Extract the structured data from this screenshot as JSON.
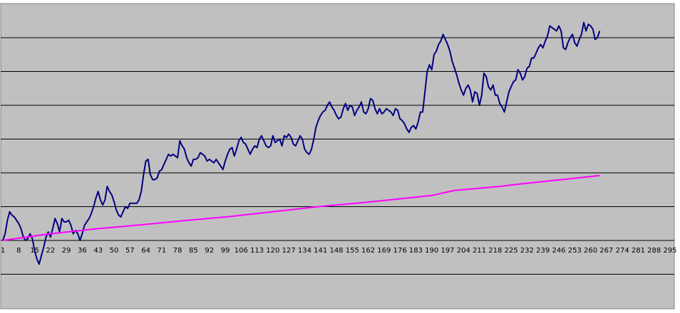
{
  "chart_data": {
    "type": "line",
    "title": "",
    "xlabel": "",
    "ylabel": "",
    "grid": true,
    "plot_background": "#c0c0c0",
    "x_tick_labels": [
      "1",
      "8",
      "15",
      "22",
      "29",
      "36",
      "43",
      "50",
      "57",
      "64",
      "71",
      "78",
      "85",
      "92",
      "99",
      "106",
      "113",
      "120",
      "127",
      "134",
      "141",
      "148",
      "155",
      "162",
      "169",
      "176",
      "183",
      "190",
      "197",
      "204",
      "211",
      "218",
      "225",
      "232",
      "239",
      "246",
      "253",
      "260",
      "267",
      "274",
      "281",
      "288",
      "295"
    ],
    "x_tick_values": [
      1,
      8,
      15,
      22,
      29,
      36,
      43,
      50,
      57,
      64,
      71,
      78,
      85,
      92,
      99,
      106,
      113,
      120,
      127,
      134,
      141,
      148,
      155,
      162,
      169,
      176,
      183,
      190,
      197,
      204,
      211,
      218,
      225,
      232,
      239,
      246,
      253,
      260,
      267,
      274,
      281,
      288,
      295
    ],
    "xlim": [
      1,
      295
    ],
    "ylim": [
      -1,
      6
    ],
    "y_gridlines": [
      -1,
      0,
      1,
      2,
      3,
      4,
      5,
      6
    ],
    "series": [
      {
        "color": "#000080",
        "points": [
          [
            1,
            0.0
          ],
          [
            2,
            0.2
          ],
          [
            3,
            0.6
          ],
          [
            4,
            0.85
          ],
          [
            5,
            0.75
          ],
          [
            6,
            0.7
          ],
          [
            7,
            0.6
          ],
          [
            8,
            0.5
          ],
          [
            9,
            0.35
          ],
          [
            10,
            0.1
          ],
          [
            11,
            0.0
          ],
          [
            12,
            0.05
          ],
          [
            13,
            0.2
          ],
          [
            14,
            0.05
          ],
          [
            15,
            -0.3
          ],
          [
            16,
            -0.55
          ],
          [
            17,
            -0.7
          ],
          [
            18,
            -0.45
          ],
          [
            19,
            -0.2
          ],
          [
            20,
            0.1
          ],
          [
            21,
            0.25
          ],
          [
            22,
            0.1
          ],
          [
            23,
            0.35
          ],
          [
            24,
            0.65
          ],
          [
            25,
            0.5
          ],
          [
            26,
            0.25
          ],
          [
            27,
            0.65
          ],
          [
            28,
            0.55
          ],
          [
            29,
            0.55
          ],
          [
            30,
            0.6
          ],
          [
            31,
            0.45
          ],
          [
            32,
            0.2
          ],
          [
            33,
            0.3
          ],
          [
            34,
            0.2
          ],
          [
            35,
            0.0
          ],
          [
            36,
            0.2
          ],
          [
            37,
            0.45
          ],
          [
            38,
            0.55
          ],
          [
            39,
            0.65
          ],
          [
            40,
            0.8
          ],
          [
            41,
            1.0
          ],
          [
            42,
            1.25
          ],
          [
            43,
            1.45
          ],
          [
            44,
            1.2
          ],
          [
            45,
            1.05
          ],
          [
            46,
            1.2
          ],
          [
            47,
            1.6
          ],
          [
            48,
            1.45
          ],
          [
            49,
            1.35
          ],
          [
            50,
            1.15
          ],
          [
            51,
            0.9
          ],
          [
            52,
            0.75
          ],
          [
            53,
            0.7
          ],
          [
            54,
            0.85
          ],
          [
            55,
            1.0
          ],
          [
            56,
            0.95
          ],
          [
            57,
            1.1
          ],
          [
            58,
            1.1
          ],
          [
            59,
            1.1
          ],
          [
            60,
            1.1
          ],
          [
            61,
            1.2
          ],
          [
            62,
            1.45
          ],
          [
            63,
            1.95
          ],
          [
            64,
            2.35
          ],
          [
            65,
            2.4
          ],
          [
            66,
            1.95
          ],
          [
            67,
            1.8
          ],
          [
            68,
            1.8
          ],
          [
            69,
            1.85
          ],
          [
            70,
            2.05
          ],
          [
            71,
            2.1
          ],
          [
            72,
            2.25
          ],
          [
            73,
            2.4
          ],
          [
            74,
            2.55
          ],
          [
            75,
            2.5
          ],
          [
            76,
            2.55
          ],
          [
            77,
            2.5
          ],
          [
            78,
            2.45
          ],
          [
            79,
            2.95
          ],
          [
            80,
            2.8
          ],
          [
            81,
            2.7
          ],
          [
            82,
            2.45
          ],
          [
            83,
            2.3
          ],
          [
            84,
            2.2
          ],
          [
            85,
            2.4
          ],
          [
            86,
            2.4
          ],
          [
            87,
            2.45
          ],
          [
            88,
            2.6
          ],
          [
            89,
            2.55
          ],
          [
            90,
            2.5
          ],
          [
            91,
            2.35
          ],
          [
            92,
            2.4
          ],
          [
            93,
            2.35
          ],
          [
            94,
            2.3
          ],
          [
            95,
            2.4
          ],
          [
            96,
            2.3
          ],
          [
            97,
            2.2
          ],
          [
            98,
            2.1
          ],
          [
            99,
            2.35
          ],
          [
            100,
            2.55
          ],
          [
            101,
            2.7
          ],
          [
            102,
            2.75
          ],
          [
            103,
            2.5
          ],
          [
            104,
            2.7
          ],
          [
            105,
            2.95
          ],
          [
            106,
            3.05
          ],
          [
            107,
            2.9
          ],
          [
            108,
            2.85
          ],
          [
            109,
            2.7
          ],
          [
            110,
            2.55
          ],
          [
            111,
            2.7
          ],
          [
            112,
            2.8
          ],
          [
            113,
            2.75
          ],
          [
            114,
            3.0
          ],
          [
            115,
            3.1
          ],
          [
            116,
            2.95
          ],
          [
            117,
            2.8
          ],
          [
            118,
            2.75
          ],
          [
            119,
            2.8
          ],
          [
            120,
            3.1
          ],
          [
            121,
            2.9
          ],
          [
            122,
            2.95
          ],
          [
            123,
            3.0
          ],
          [
            124,
            2.8
          ],
          [
            125,
            3.1
          ],
          [
            126,
            3.05
          ],
          [
            127,
            3.15
          ],
          [
            128,
            3.05
          ],
          [
            129,
            2.85
          ],
          [
            130,
            2.8
          ],
          [
            131,
            2.95
          ],
          [
            132,
            3.1
          ],
          [
            133,
            3.0
          ],
          [
            134,
            2.7
          ],
          [
            135,
            2.6
          ],
          [
            136,
            2.55
          ],
          [
            137,
            2.7
          ],
          [
            138,
            3.0
          ],
          [
            139,
            3.35
          ],
          [
            140,
            3.55
          ],
          [
            141,
            3.7
          ],
          [
            142,
            3.8
          ],
          [
            143,
            3.85
          ],
          [
            144,
            4.0
          ],
          [
            145,
            4.1
          ],
          [
            146,
            3.95
          ],
          [
            147,
            3.85
          ],
          [
            148,
            3.7
          ],
          [
            149,
            3.6
          ],
          [
            150,
            3.65
          ],
          [
            151,
            3.9
          ],
          [
            152,
            4.05
          ],
          [
            153,
            3.85
          ],
          [
            154,
            4.0
          ],
          [
            155,
            3.95
          ],
          [
            156,
            3.7
          ],
          [
            157,
            3.85
          ],
          [
            158,
            3.95
          ],
          [
            159,
            4.1
          ],
          [
            160,
            3.8
          ],
          [
            161,
            3.75
          ],
          [
            162,
            3.9
          ],
          [
            163,
            4.2
          ],
          [
            164,
            4.15
          ],
          [
            165,
            3.9
          ],
          [
            166,
            3.75
          ],
          [
            167,
            3.9
          ],
          [
            168,
            3.75
          ],
          [
            169,
            3.8
          ],
          [
            170,
            3.9
          ],
          [
            171,
            3.85
          ],
          [
            172,
            3.8
          ],
          [
            173,
            3.7
          ],
          [
            174,
            3.9
          ],
          [
            175,
            3.85
          ],
          [
            176,
            3.6
          ],
          [
            177,
            3.55
          ],
          [
            178,
            3.45
          ],
          [
            179,
            3.3
          ],
          [
            180,
            3.2
          ],
          [
            181,
            3.35
          ],
          [
            182,
            3.4
          ],
          [
            183,
            3.3
          ],
          [
            184,
            3.5
          ],
          [
            185,
            3.8
          ],
          [
            186,
            3.8
          ],
          [
            187,
            4.4
          ],
          [
            188,
            5.0
          ],
          [
            189,
            5.2
          ],
          [
            190,
            5.05
          ],
          [
            191,
            5.5
          ],
          [
            192,
            5.6
          ],
          [
            193,
            5.8
          ],
          [
            194,
            5.9
          ],
          [
            195,
            6.1
          ],
          [
            196,
            5.95
          ],
          [
            197,
            5.8
          ],
          [
            198,
            5.6
          ],
          [
            199,
            5.3
          ],
          [
            200,
            5.1
          ],
          [
            201,
            4.9
          ],
          [
            202,
            4.65
          ],
          [
            203,
            4.45
          ],
          [
            204,
            4.3
          ],
          [
            205,
            4.5
          ],
          [
            206,
            4.6
          ],
          [
            207,
            4.45
          ],
          [
            208,
            4.1
          ],
          [
            209,
            4.4
          ],
          [
            210,
            4.35
          ],
          [
            211,
            4.0
          ],
          [
            212,
            4.3
          ],
          [
            213,
            4.95
          ],
          [
            214,
            4.85
          ],
          [
            215,
            4.55
          ],
          [
            216,
            4.45
          ],
          [
            217,
            4.6
          ],
          [
            218,
            4.3
          ],
          [
            219,
            4.3
          ],
          [
            220,
            4.05
          ],
          [
            221,
            3.95
          ],
          [
            222,
            3.8
          ],
          [
            223,
            4.1
          ],
          [
            224,
            4.4
          ],
          [
            225,
            4.55
          ],
          [
            226,
            4.7
          ],
          [
            227,
            4.75
          ],
          [
            228,
            5.05
          ],
          [
            229,
            4.95
          ],
          [
            230,
            4.75
          ],
          [
            231,
            4.85
          ],
          [
            232,
            5.1
          ],
          [
            233,
            5.15
          ],
          [
            234,
            5.4
          ],
          [
            235,
            5.4
          ],
          [
            236,
            5.55
          ],
          [
            237,
            5.7
          ],
          [
            238,
            5.8
          ],
          [
            239,
            5.7
          ],
          [
            240,
            5.9
          ],
          [
            241,
            6.05
          ],
          [
            242,
            6.35
          ],
          [
            243,
            6.3
          ],
          [
            244,
            6.25
          ],
          [
            245,
            6.2
          ],
          [
            246,
            6.35
          ],
          [
            247,
            6.2
          ],
          [
            248,
            5.7
          ],
          [
            249,
            5.65
          ],
          [
            250,
            5.85
          ],
          [
            251,
            6.0
          ],
          [
            252,
            6.1
          ],
          [
            253,
            5.85
          ],
          [
            254,
            5.75
          ],
          [
            255,
            5.95
          ],
          [
            256,
            6.1
          ],
          [
            257,
            6.45
          ],
          [
            258,
            6.2
          ],
          [
            259,
            6.4
          ],
          [
            260,
            6.35
          ],
          [
            261,
            6.25
          ],
          [
            262,
            5.95
          ],
          [
            263,
            6.0
          ],
          [
            264,
            6.2
          ]
        ]
      },
      {
        "color": "#ff00ff",
        "points": [
          [
            1,
            0.0
          ],
          [
            20,
            0.18
          ],
          [
            40,
            0.33
          ],
          [
            60,
            0.45
          ],
          [
            80,
            0.58
          ],
          [
            100,
            0.7
          ],
          [
            120,
            0.85
          ],
          [
            140,
            1.0
          ],
          [
            160,
            1.12
          ],
          [
            180,
            1.26
          ],
          [
            190,
            1.33
          ],
          [
            200,
            1.48
          ],
          [
            220,
            1.6
          ],
          [
            230,
            1.68
          ],
          [
            240,
            1.75
          ],
          [
            250,
            1.82
          ],
          [
            264,
            1.92
          ]
        ]
      }
    ]
  }
}
